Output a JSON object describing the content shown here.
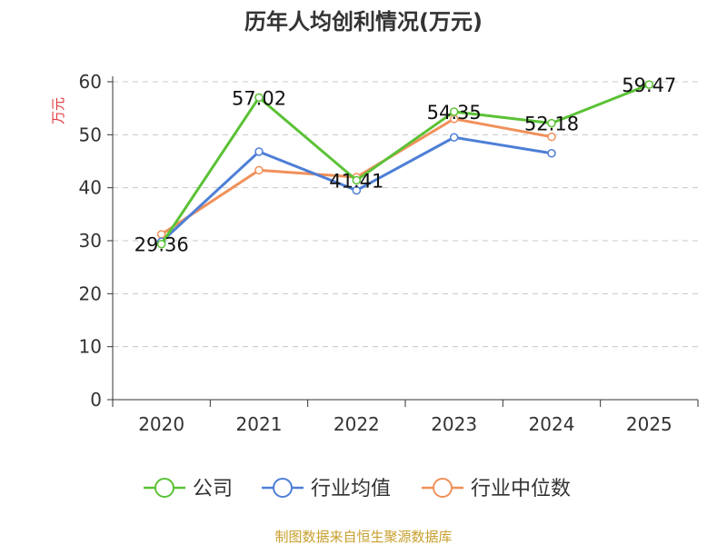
{
  "chart_data": {
    "type": "line",
    "title": "历年人均创利情况(万元)",
    "ylabel": "万元",
    "xlabel": "",
    "categories": [
      "2020",
      "2021",
      "2022",
      "2023",
      "2024",
      "2025"
    ],
    "ylim": [
      0,
      60
    ],
    "yticks": [
      0,
      10,
      20,
      30,
      40,
      50,
      60
    ],
    "grid": true,
    "legend_position": "bottom",
    "series": [
      {
        "name": "公司",
        "color": "#5bc236",
        "values": [
          29.36,
          57.02,
          41.41,
          54.35,
          52.18,
          59.47
        ],
        "show_labels": true
      },
      {
        "name": "行业均值",
        "color": "#4e7fd6",
        "values": [
          29.8,
          46.8,
          39.5,
          49.5,
          46.5,
          null
        ],
        "show_labels": false
      },
      {
        "name": "行业中位数",
        "color": "#f0905a",
        "values": [
          31.2,
          43.3,
          42.0,
          53.0,
          49.6,
          null
        ],
        "show_labels": false
      }
    ],
    "source": "制图数据来自恒生聚源数据库"
  }
}
